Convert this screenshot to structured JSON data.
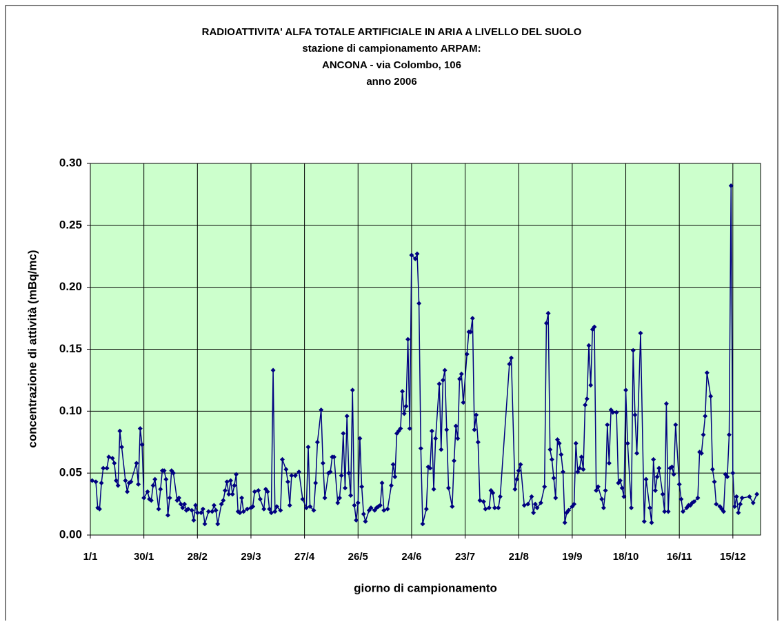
{
  "chart_data": {
    "type": "line",
    "title": "RADIOATTIVITA' ALFA TOTALE ARTIFICIALE IN ARIA A LIVELLO DEL SUOLO",
    "subtitle": [
      "stazione di campionamento ARPAM:",
      "ANCONA - via Colombo, 106",
      "anno 2006"
    ],
    "xlabel": "giorno di campionamento",
    "ylabel": "concentrazione di attività (mBq/mc)",
    "color": "#000080",
    "background": "#ccffcc",
    "grid": true,
    "xlim": [
      0,
      363
    ],
    "xticks": [
      {
        "value": 0,
        "label": "1/1"
      },
      {
        "value": 29,
        "label": "30/1"
      },
      {
        "value": 58,
        "label": "28/2"
      },
      {
        "value": 87,
        "label": "29/3"
      },
      {
        "value": 116,
        "label": "27/4"
      },
      {
        "value": 145,
        "label": "26/5"
      },
      {
        "value": 174,
        "label": "24/6"
      },
      {
        "value": 203,
        "label": "23/7"
      },
      {
        "value": 232,
        "label": "21/8"
      },
      {
        "value": 261,
        "label": "19/9"
      },
      {
        "value": 290,
        "label": "18/10"
      },
      {
        "value": 319,
        "label": "16/11"
      },
      {
        "value": 348,
        "label": "15/12"
      }
    ],
    "ylim": [
      0,
      0.3
    ],
    "yticks": [
      {
        "value": 0,
        "label": "0.00"
      },
      {
        "value": 0.05,
        "label": "0.05"
      },
      {
        "value": 0.1,
        "label": "0.10"
      },
      {
        "value": 0.15,
        "label": "0.15"
      },
      {
        "value": 0.2,
        "label": "0.20"
      },
      {
        "value": 0.25,
        "label": "0.25"
      },
      {
        "value": 0.3,
        "label": "0.30"
      }
    ],
    "x": [
      1,
      3,
      4,
      5,
      6,
      7,
      9,
      10,
      12,
      13,
      14,
      15,
      16,
      17,
      19,
      20,
      21,
      22,
      25,
      26,
      27,
      28,
      29,
      31,
      32,
      33,
      34,
      35,
      37,
      38,
      39,
      40,
      41,
      42,
      43,
      44,
      45,
      47,
      48,
      49,
      50,
      51,
      52,
      53,
      55,
      56,
      57,
      58,
      60,
      61,
      62,
      64,
      66,
      67,
      68,
      69,
      71,
      72,
      73,
      74,
      75,
      76,
      77,
      78,
      79,
      80,
      81,
      82,
      83,
      85,
      87,
      88,
      89,
      91,
      92,
      94,
      95,
      96,
      97,
      98,
      99,
      100,
      101,
      103,
      104,
      106,
      107,
      108,
      109,
      111,
      113,
      115,
      117,
      118,
      119,
      121,
      122,
      123,
      125,
      126,
      127,
      129,
      130,
      131,
      132,
      134,
      135,
      136,
      137,
      138,
      139,
      140,
      141,
      142,
      143,
      144,
      145,
      146,
      147,
      148,
      149,
      151,
      152,
      154,
      155,
      156,
      157,
      158,
      159,
      161,
      163,
      164,
      165,
      166,
      167,
      168,
      169,
      170,
      171,
      172,
      173,
      174,
      176,
      177,
      178,
      179,
      180,
      182,
      183,
      184,
      185,
      186,
      187,
      189,
      190,
      191,
      192,
      193,
      194,
      196,
      197,
      198,
      199,
      200,
      201,
      202,
      204,
      205,
      206,
      207,
      208,
      209,
      210,
      211,
      213,
      214,
      216,
      217,
      218,
      219,
      221,
      222,
      227,
      228,
      230,
      231,
      232,
      233,
      235,
      237,
      239,
      240,
      241,
      242,
      244,
      246,
      247,
      248,
      249,
      250,
      251,
      252,
      253,
      254,
      255,
      256,
      257,
      258,
      259,
      261,
      262,
      263,
      264,
      265,
      266,
      267,
      268,
      269,
      270,
      271,
      272,
      273,
      274,
      275,
      277,
      278,
      279,
      280,
      281,
      282,
      283,
      285,
      286,
      287,
      288,
      289,
      290,
      291,
      293,
      294,
      295,
      296,
      298,
      300,
      301,
      303,
      304,
      305,
      306,
      307,
      308,
      310,
      311,
      312,
      313,
      314,
      315,
      316,
      317,
      319,
      320,
      321,
      323,
      324,
      325,
      326,
      327,
      329,
      330,
      331,
      332,
      333,
      334,
      336,
      337,
      338,
      339,
      341,
      342,
      343,
      344,
      345,
      346,
      347,
      348,
      349,
      350,
      351,
      352,
      353,
      357,
      359,
      361
    ],
    "values": [
      0.044,
      0.043,
      0.022,
      0.021,
      0.042,
      0.054,
      0.054,
      0.063,
      0.062,
      0.058,
      0.044,
      0.04,
      0.084,
      0.071,
      0.044,
      0.035,
      0.042,
      0.043,
      0.058,
      0.041,
      0.086,
      0.073,
      0.03,
      0.035,
      0.029,
      0.028,
      0.04,
      0.045,
      0.021,
      0.037,
      0.052,
      0.052,
      0.045,
      0.016,
      0.03,
      0.052,
      0.05,
      0.028,
      0.03,
      0.025,
      0.022,
      0.025,
      0.02,
      0.021,
      0.02,
      0.012,
      0.024,
      0.018,
      0.018,
      0.021,
      0.009,
      0.019,
      0.019,
      0.024,
      0.02,
      0.009,
      0.025,
      0.028,
      0.036,
      0.043,
      0.033,
      0.044,
      0.033,
      0.04,
      0.049,
      0.019,
      0.018,
      0.03,
      0.019,
      0.021,
      0.022,
      0.023,
      0.035,
      0.036,
      0.029,
      0.021,
      0.037,
      0.035,
      0.021,
      0.018,
      0.133,
      0.019,
      0.023,
      0.02,
      0.061,
      0.053,
      0.043,
      0.024,
      0.048,
      0.048,
      0.051,
      0.029,
      0.022,
      0.071,
      0.023,
      0.02,
      0.042,
      0.075,
      0.101,
      0.058,
      0.03,
      0.05,
      0.051,
      0.063,
      0.063,
      0.026,
      0.03,
      0.048,
      0.082,
      0.038,
      0.096,
      0.05,
      0.032,
      0.117,
      0.024,
      0.012,
      0.026,
      0.078,
      0.039,
      0.017,
      0.011,
      0.02,
      0.022,
      0.02,
      0.022,
      0.023,
      0.024,
      0.042,
      0.02,
      0.021,
      0.04,
      0.057,
      0.047,
      0.082,
      0.084,
      0.086,
      0.116,
      0.098,
      0.104,
      0.158,
      0.086,
      0.226,
      0.223,
      0.227,
      0.187,
      0.07,
      0.009,
      0.021,
      0.055,
      0.054,
      0.084,
      0.037,
      0.078,
      0.122,
      0.069,
      0.125,
      0.133,
      0.085,
      0.038,
      0.023,
      0.06,
      0.088,
      0.078,
      0.126,
      0.13,
      0.107,
      0.146,
      0.164,
      0.164,
      0.175,
      0.085,
      0.097,
      0.075,
      0.028,
      0.027,
      0.021,
      0.022,
      0.036,
      0.034,
      0.022,
      0.022,
      0.031,
      0.138,
      0.143,
      0.037,
      0.045,
      0.052,
      0.057,
      0.024,
      0.025,
      0.031,
      0.018,
      0.025,
      0.022,
      0.026,
      0.039,
      0.171,
      0.179,
      0.069,
      0.061,
      0.046,
      0.03,
      0.077,
      0.074,
      0.065,
      0.051,
      0.01,
      0.018,
      0.02,
      0.023,
      0.025,
      0.074,
      0.051,
      0.054,
      0.063,
      0.053,
      0.105,
      0.11,
      0.153,
      0.121,
      0.166,
      0.168,
      0.036,
      0.039,
      0.029,
      0.022,
      0.036,
      0.089,
      0.058,
      0.101,
      0.099,
      0.099,
      0.042,
      0.044,
      0.038,
      0.031,
      0.117,
      0.074,
      0.022,
      0.149,
      0.097,
      0.066,
      0.163,
      0.011,
      0.045,
      0.022,
      0.01,
      0.061,
      0.036,
      0.047,
      0.054,
      0.033,
      0.019,
      0.106,
      0.019,
      0.054,
      0.055,
      0.049,
      0.089,
      0.041,
      0.029,
      0.019,
      0.022,
      0.024,
      0.024,
      0.026,
      0.027,
      0.03,
      0.067,
      0.066,
      0.081,
      0.096,
      0.131,
      0.112,
      0.053,
      0.043,
      0.025,
      0.023,
      0.021,
      0.019,
      0.049,
      0.047,
      0.081,
      0.282,
      0.05,
      0.023,
      0.031,
      0.018,
      0.025,
      0.03,
      0.031,
      0.026,
      0.033
    ]
  }
}
